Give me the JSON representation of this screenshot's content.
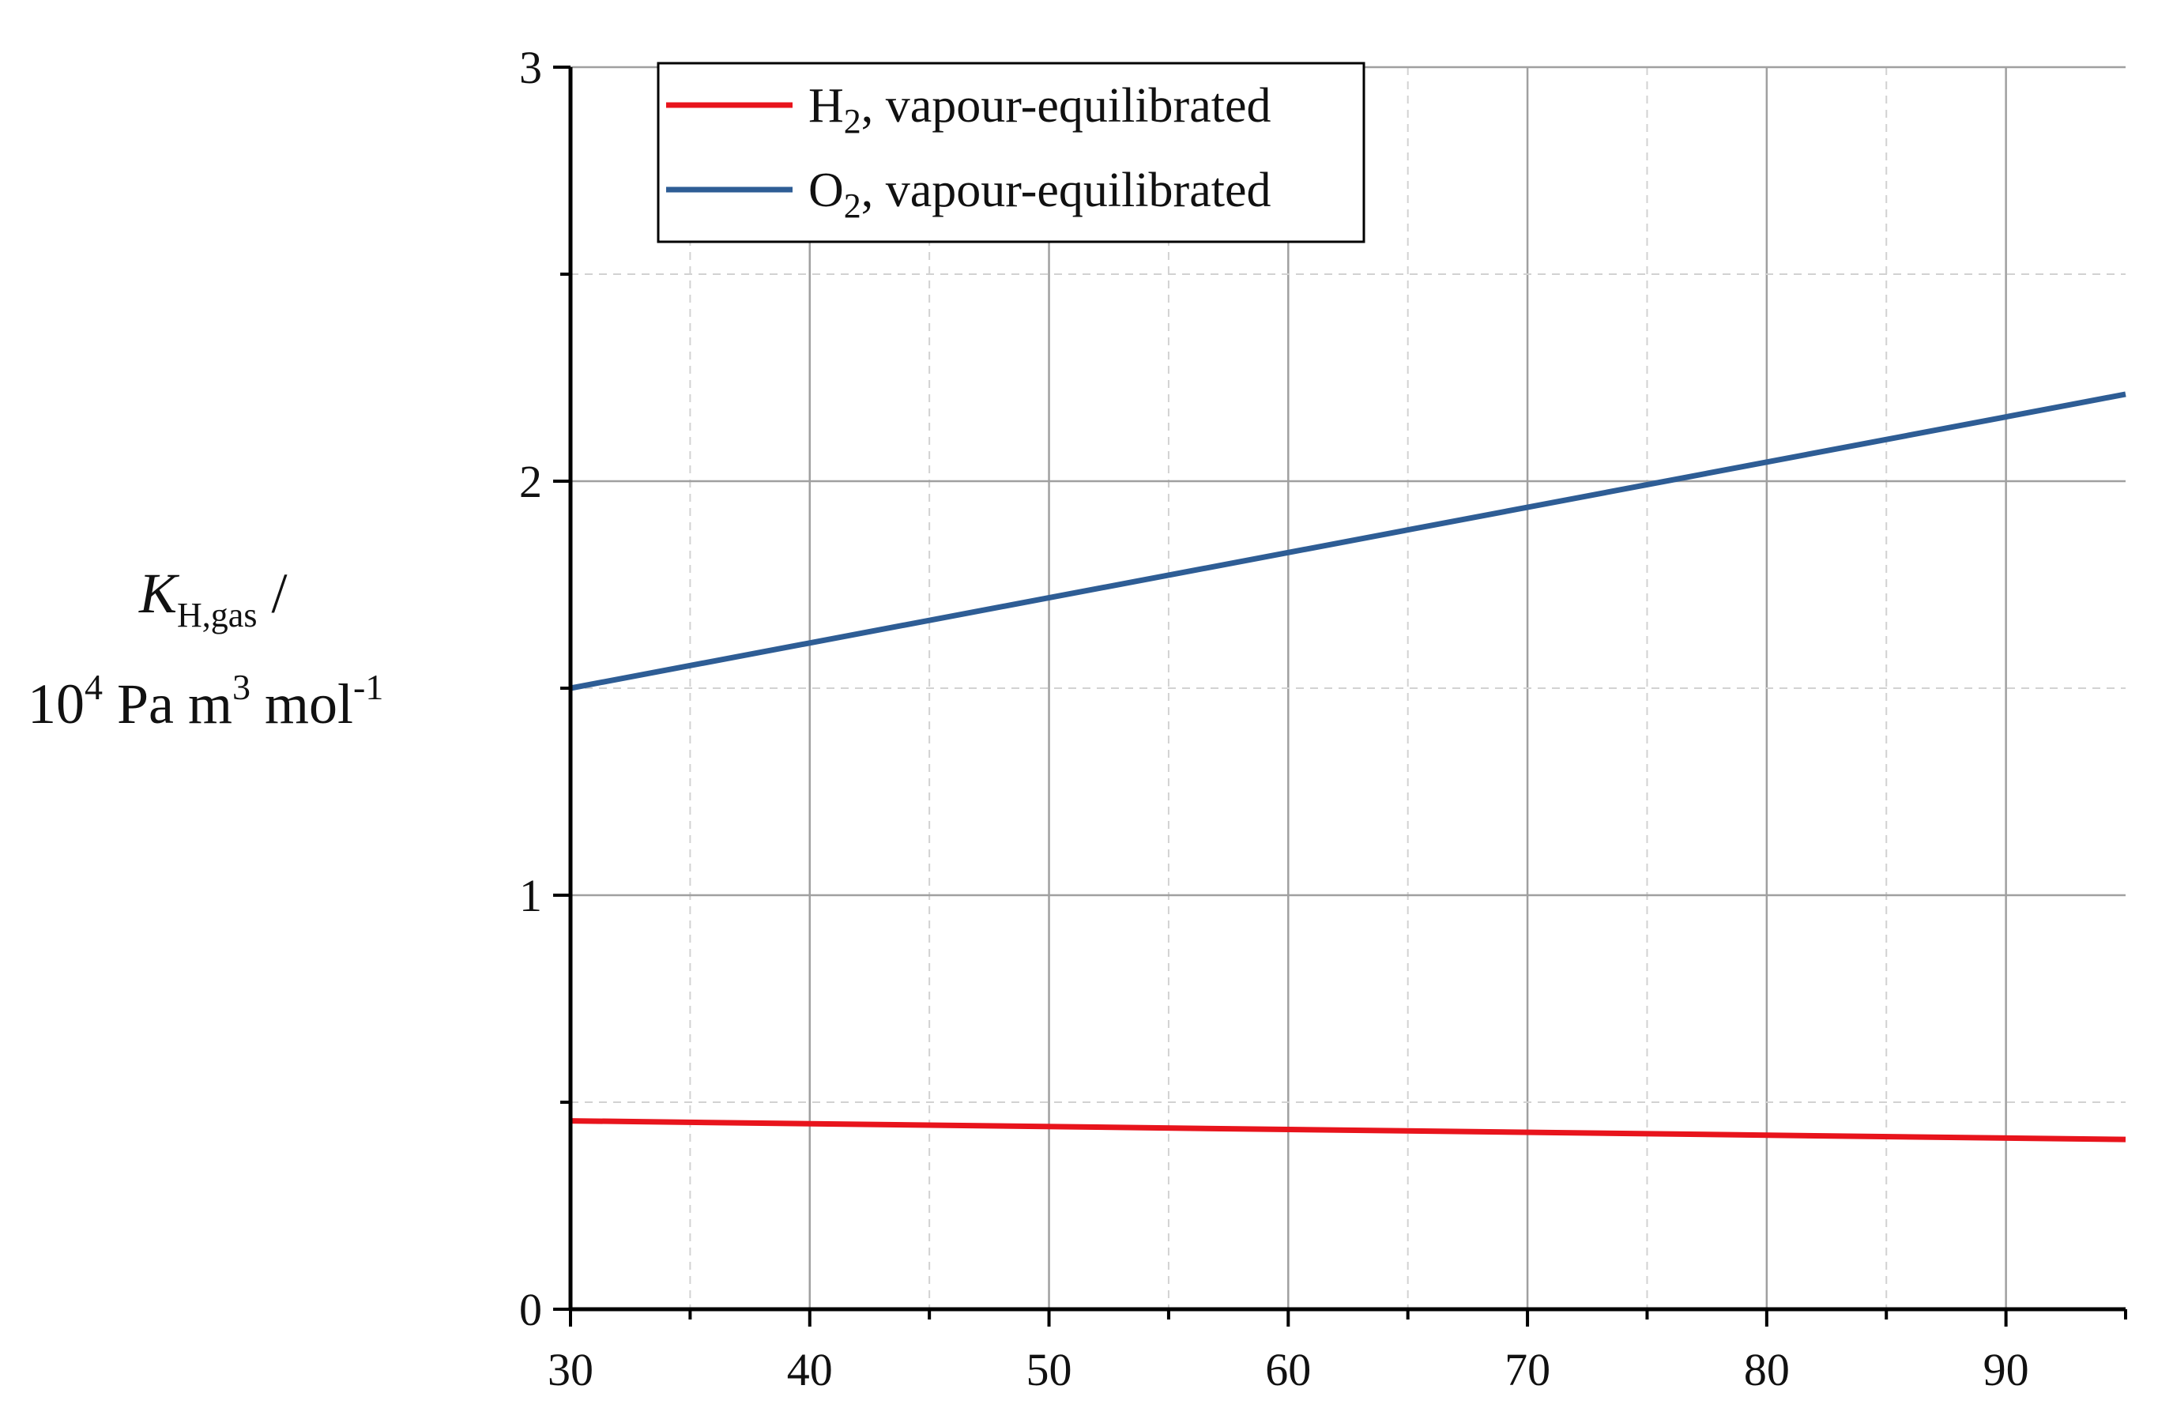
{
  "chart_data": {
    "type": "line",
    "title": "",
    "xlabel": "",
    "ylabel": {
      "symbol": "K",
      "subscript": "H,gas",
      "slash": " /",
      "unit_base": "10",
      "unit_exp": "4",
      "unit_mid": " Pa m",
      "unit_mid_exp": "3",
      "unit_end": " mol",
      "unit_end_exp": "-1"
    },
    "xlim": [
      30,
      95
    ],
    "ylim": [
      0,
      3
    ],
    "x_ticks": [
      30,
      40,
      50,
      60,
      70,
      80,
      90
    ],
    "x_tick_labels": [
      "30",
      "40",
      "50",
      "60",
      "70",
      "80",
      "90"
    ],
    "x_minor_ticks": [
      35,
      45,
      55,
      65,
      75,
      85,
      95
    ],
    "y_ticks": [
      0,
      1,
      2,
      3
    ],
    "y_tick_labels": [
      "0",
      "1",
      "2",
      "3"
    ],
    "y_minor_ticks": [
      0.5,
      1.5,
      2.5
    ],
    "grid": true,
    "legend_position": "top-left",
    "series": [
      {
        "name": {
          "base": "H",
          "sub": "2",
          "rest": ", vapour-equilibrated"
        },
        "color": "#e8141c",
        "x": [
          30,
          95
        ],
        "y": [
          0.455,
          0.41
        ]
      },
      {
        "name": {
          "base": "O",
          "sub": "2",
          "rest": ", vapour-equilibrated"
        },
        "color": "#2e5d95",
        "x": [
          30,
          95
        ],
        "y": [
          1.5,
          2.21
        ]
      }
    ]
  }
}
